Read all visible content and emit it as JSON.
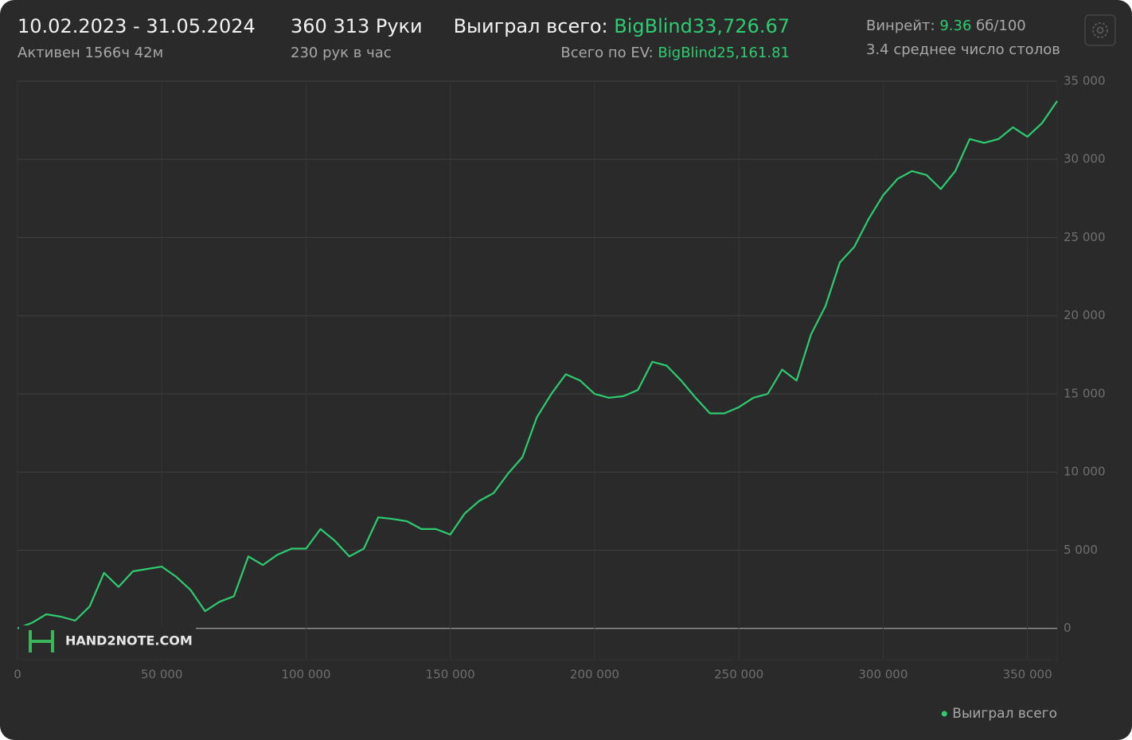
{
  "header": {
    "date_range": "10.02.2023 - 31.05.2024",
    "active": "Активен 1566ч 42м",
    "hands": "360 313 Руки",
    "hands_per_hour": "230 рук в час",
    "won_label": "Выиграл всего:",
    "won_value": "BigBlind33,726.67",
    "ev_label": "Всего по EV:",
    "ev_value": "BigBlind25,161.81",
    "winrate_label": "Винрейт:",
    "winrate_value": "9.36",
    "winrate_unit": "бб/100",
    "tables": "3.4 среднее число столов"
  },
  "watermark": "HAND2NOTE.COM",
  "chart_data": {
    "type": "line",
    "x": [
      0,
      5000,
      10000,
      15000,
      20000,
      25000,
      30000,
      35000,
      40000,
      45000,
      50000,
      55000,
      60000,
      65000,
      70000,
      75000,
      80000,
      85000,
      90000,
      95000,
      100000,
      105000,
      110000,
      115000,
      120000,
      125000,
      130000,
      135000,
      140000,
      145000,
      150000,
      155000,
      160000,
      165000,
      170000,
      175000,
      180000,
      185000,
      190000,
      195000,
      200000,
      205000,
      210000,
      215000,
      220000,
      225000,
      230000,
      235000,
      240000,
      245000,
      250000,
      255000,
      260000,
      265000,
      270000,
      275000,
      280000,
      285000,
      290000,
      295000,
      300000,
      305000,
      310000,
      315000,
      320000,
      325000,
      330000,
      335000,
      340000,
      345000,
      350000,
      355000,
      360313
    ],
    "series": [
      {
        "name": "Выиграл всего",
        "color": "#2ecc71",
        "values": [
          0,
          350,
          900,
          750,
          500,
          1400,
          3550,
          2650,
          3650,
          3800,
          3950,
          3300,
          2450,
          1100,
          1700,
          2050,
          4600,
          4050,
          4700,
          5100,
          5100,
          6350,
          5600,
          4600,
          5100,
          7100,
          7000,
          6850,
          6350,
          6350,
          6000,
          7350,
          8150,
          8650,
          9900,
          10950,
          13500,
          15000,
          16250,
          15850,
          15000,
          14750,
          14850,
          15250,
          17050,
          16800,
          15850,
          14750,
          13750,
          13750,
          14150,
          14750,
          15000,
          16550,
          15850,
          18800,
          20600,
          23400,
          24400,
          26200,
          27700,
          28750,
          29250,
          29000,
          28100,
          29250,
          31300,
          31050,
          31300,
          32050,
          31450,
          32300,
          33726.67
        ]
      }
    ],
    "xlim": [
      0,
      360313
    ],
    "ylim": [
      -2000,
      35000
    ],
    "xticks": [
      0,
      {
        "value": 50000,
        "label": "50 000"
      },
      {
        "value": 100000,
        "label": "100 000"
      },
      {
        "value": 150000,
        "label": "150 000"
      },
      {
        "value": 200000,
        "label": "200 000"
      },
      {
        "value": 250000,
        "label": "250 000"
      },
      {
        "value": 300000,
        "label": "300 000"
      },
      {
        "value": 350000,
        "label": "350 000"
      }
    ],
    "yticks": [
      0,
      {
        "value": 5000,
        "label": "5 000"
      },
      {
        "value": 10000,
        "label": "10 000"
      },
      {
        "value": 15000,
        "label": "15 000"
      },
      {
        "value": 20000,
        "label": "20 000"
      },
      {
        "value": 25000,
        "label": "25 000"
      },
      {
        "value": 30000,
        "label": "30 000"
      },
      {
        "value": 35000,
        "label": "35 000"
      }
    ],
    "grid": true,
    "legend": "bottom-right"
  }
}
